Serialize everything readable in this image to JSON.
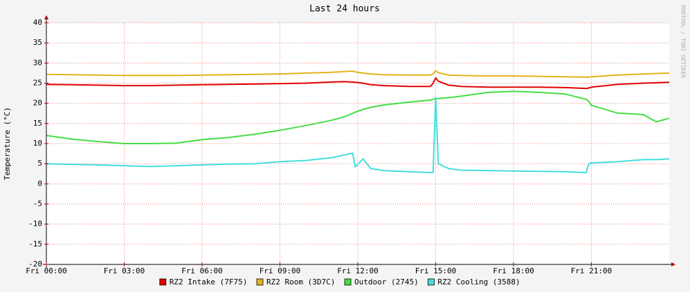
{
  "chart_data": {
    "type": "line",
    "title": "Last 24 hours",
    "y_label": "Temperature (°C)",
    "watermark": "RRDTOOL / TOBI OETIKER",
    "x": [
      0,
      1,
      2,
      3,
      4,
      5,
      6,
      7,
      8,
      9,
      10,
      11,
      11.5,
      11.8,
      11.9,
      12.2,
      12.5,
      13,
      14,
      14.8,
      14.9,
      15,
      15.1,
      15.5,
      16,
      17,
      18,
      19,
      20,
      20.8,
      20.9,
      21,
      22,
      23,
      23.5,
      24
    ],
    "xlim": [
      0,
      24
    ],
    "xticks": [
      {
        "value": 0,
        "label": "Fri 00:00"
      },
      {
        "value": 3,
        "label": "Fri 03:00"
      },
      {
        "value": 6,
        "label": "Fri 06:00"
      },
      {
        "value": 9,
        "label": "Fri 09:00"
      },
      {
        "value": 12,
        "label": "Fri 12:00"
      },
      {
        "value": 15,
        "label": "Fri 15:00"
      },
      {
        "value": 18,
        "label": "Fri 18:00"
      },
      {
        "value": 21,
        "label": "Fri 21:00"
      }
    ],
    "ylim": [
      -20,
      40
    ],
    "yticks": [
      -20,
      -15,
      -10,
      -5,
      0,
      5,
      10,
      15,
      20,
      25,
      30,
      35,
      40
    ],
    "grid": true,
    "legend": "bottom",
    "series": [
      {
        "name": "RZ2 Intake (7F75)",
        "color": "#e00000",
        "values": [
          24.7,
          24.6,
          24.5,
          24.4,
          24.4,
          24.5,
          24.6,
          24.7,
          24.8,
          24.9,
          25.0,
          25.3,
          25.4,
          25.3,
          25.2,
          25.0,
          24.6,
          24.4,
          24.2,
          24.2,
          25.0,
          26.3,
          25.5,
          24.5,
          24.2,
          24.0,
          24.0,
          24.0,
          23.9,
          23.7,
          23.8,
          24.0,
          24.7,
          25.0,
          25.1,
          25.2
        ]
      },
      {
        "name": "RZ2 Room (3D7C)",
        "color": "#e3b21c",
        "values": [
          27.2,
          27.1,
          27.0,
          26.9,
          26.9,
          26.9,
          27.0,
          27.1,
          27.2,
          27.3,
          27.5,
          27.7,
          27.9,
          28.0,
          27.8,
          27.5,
          27.3,
          27.1,
          27.0,
          27.0,
          27.3,
          28.1,
          27.6,
          27.0,
          26.9,
          26.8,
          26.8,
          26.7,
          26.6,
          26.5,
          26.5,
          26.6,
          27.0,
          27.3,
          27.4,
          27.5
        ]
      },
      {
        "name": "Outdoor (2745)",
        "color": "#44dd44",
        "values": [
          12.0,
          11.1,
          10.5,
          10.0,
          10.0,
          10.1,
          11.0,
          11.5,
          12.3,
          13.3,
          14.5,
          15.8,
          16.7,
          17.5,
          17.8,
          18.5,
          19.0,
          19.6,
          20.3,
          20.8,
          21.0,
          21.1,
          21.2,
          21.4,
          21.8,
          22.7,
          23.0,
          22.7,
          22.3,
          21.0,
          20.5,
          19.5,
          17.6,
          17.2,
          15.4,
          16.3
        ]
      },
      {
        "name": "RZ2 Cooling (3588)",
        "color": "#44dddd",
        "values": [
          5.0,
          4.8,
          4.7,
          4.5,
          4.3,
          4.5,
          4.7,
          4.9,
          5.0,
          5.5,
          5.8,
          6.5,
          7.2,
          7.6,
          4.2,
          6.2,
          3.8,
          3.3,
          3.0,
          2.8,
          2.8,
          21.5,
          5.0,
          3.8,
          3.4,
          3.3,
          3.2,
          3.1,
          3.0,
          2.8,
          5.0,
          5.2,
          5.5,
          6.0,
          6.0,
          6.2
        ]
      }
    ]
  }
}
